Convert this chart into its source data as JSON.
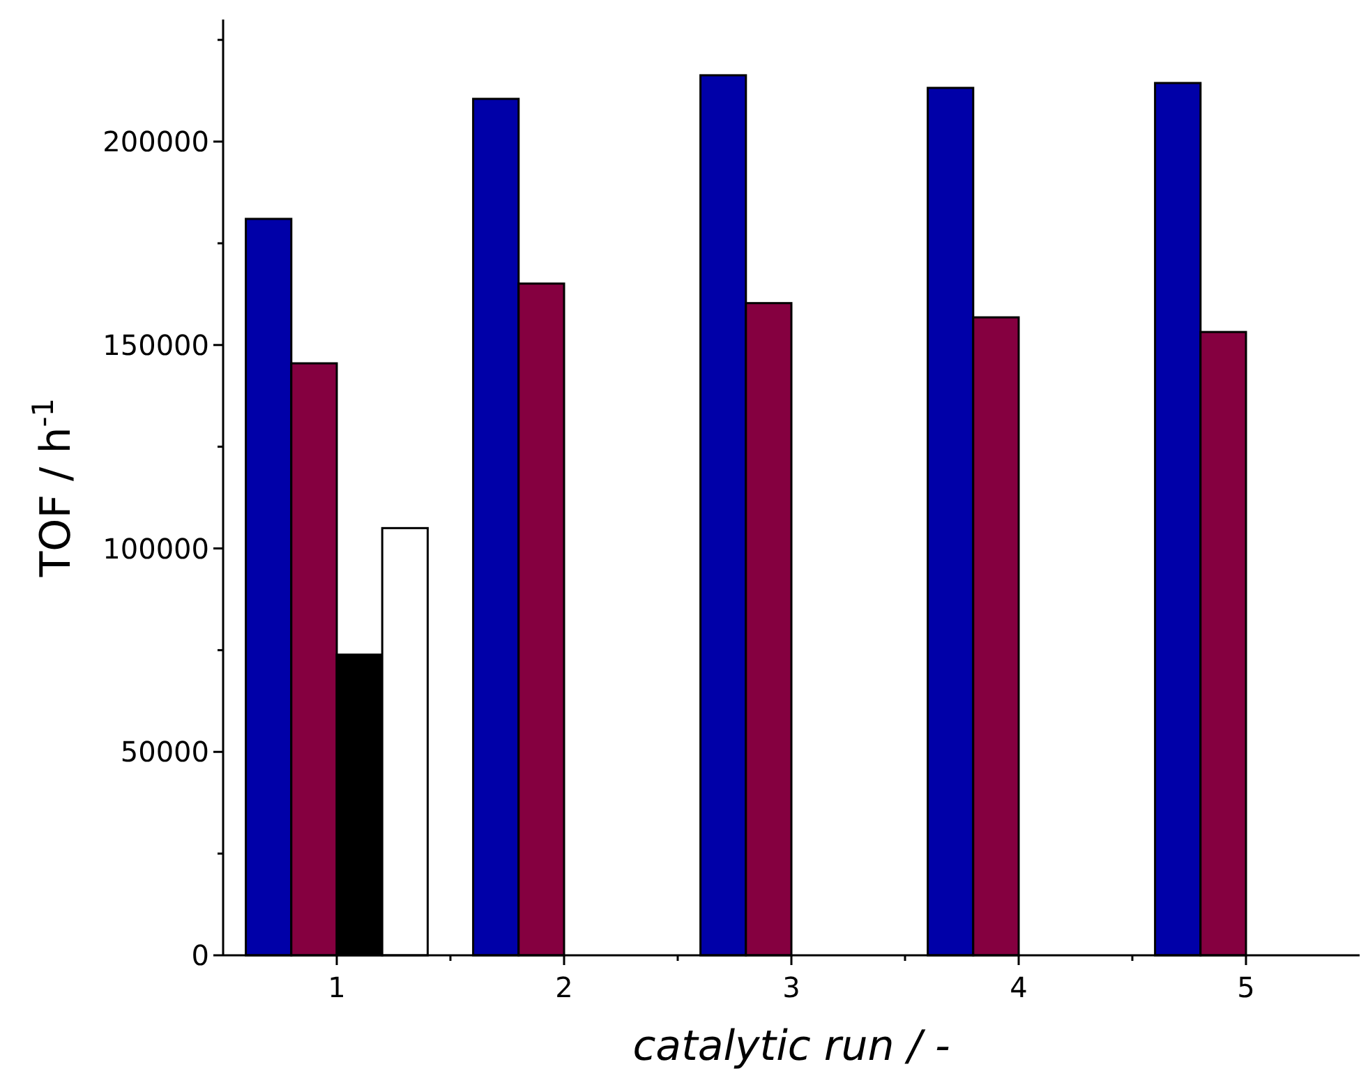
{
  "chart_data": {
    "type": "bar",
    "xlabel": "catalytic run / -",
    "ylabel": "TOF / h$^{-1}$",
    "categories": [
      "1",
      "2",
      "3",
      "4",
      "5"
    ],
    "series": [
      {
        "color": "#0000a8",
        "values": [
          181000,
          210500,
          216300,
          213200,
          214400
        ]
      },
      {
        "color": "#850040",
        "values": [
          145500,
          165100,
          160300,
          156800,
          153200
        ]
      },
      {
        "color": "#000000",
        "values": [
          73900,
          null,
          null,
          null,
          null
        ]
      },
      {
        "color": "#ffffff",
        "values": [
          105000,
          null,
          null,
          null,
          null
        ]
      }
    ],
    "ylim": [
      0,
      230000
    ],
    "yticks": [
      0,
      {
        "value": 25000,
        "label": null
      },
      50000,
      {
        "value": 75000,
        "label": null
      },
      100000,
      {
        "value": 125000,
        "label": null
      },
      150000,
      {
        "value": 175000,
        "label": null
      },
      200000,
      {
        "value": 225000,
        "label": null
      }
    ],
    "grid": false
  }
}
